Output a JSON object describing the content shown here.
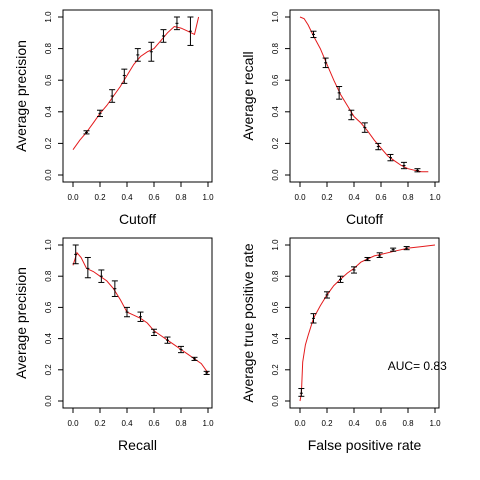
{
  "chart_data": [
    {
      "type": "line",
      "xlabel": "Cutoff",
      "ylabel": "Average precision",
      "xlim": [
        0,
        1
      ],
      "ylim": [
        0,
        1
      ],
      "xticks": [
        "0.0",
        "0.2",
        "0.4",
        "0.6",
        "0.8",
        "1.0"
      ],
      "yticks": [
        "0.0",
        "0.2",
        "0.4",
        "0.6",
        "0.8",
        "1.0"
      ],
      "curve_color": "#e41a1c",
      "curve": {
        "x": [
          0.0,
          0.05,
          0.1,
          0.15,
          0.2,
          0.25,
          0.3,
          0.35,
          0.4,
          0.45,
          0.5,
          0.55,
          0.6,
          0.65,
          0.7,
          0.75,
          0.8,
          0.85,
          0.9,
          0.93
        ],
        "y": [
          0.16,
          0.22,
          0.27,
          0.33,
          0.39,
          0.44,
          0.5,
          0.56,
          0.63,
          0.7,
          0.75,
          0.78,
          0.8,
          0.85,
          0.9,
          0.94,
          0.93,
          0.91,
          0.89,
          1.0
        ]
      },
      "errorbars": {
        "x": [
          0.1,
          0.2,
          0.29,
          0.38,
          0.48,
          0.58,
          0.67,
          0.77,
          0.87
        ],
        "y": [
          0.27,
          0.39,
          0.5,
          0.63,
          0.76,
          0.78,
          0.88,
          0.96,
          0.91
        ],
        "lo": [
          0.26,
          0.37,
          0.46,
          0.58,
          0.72,
          0.72,
          0.84,
          0.92,
          0.82
        ],
        "hi": [
          0.28,
          0.41,
          0.54,
          0.67,
          0.8,
          0.84,
          0.92,
          1.0,
          1.0
        ]
      }
    },
    {
      "type": "line",
      "xlabel": "Cutoff",
      "ylabel": "Average recall",
      "xlim": [
        0,
        1
      ],
      "ylim": [
        0,
        1
      ],
      "xticks": [
        "0.0",
        "0.2",
        "0.4",
        "0.6",
        "0.8",
        "1.0"
      ],
      "yticks": [
        "0.0",
        "0.2",
        "0.4",
        "0.6",
        "0.8",
        "1.0"
      ],
      "curve_color": "#e41a1c",
      "curve": {
        "x": [
          0.0,
          0.03,
          0.06,
          0.1,
          0.15,
          0.2,
          0.25,
          0.3,
          0.35,
          0.4,
          0.45,
          0.5,
          0.55,
          0.6,
          0.65,
          0.7,
          0.75,
          0.8,
          0.85,
          0.9,
          0.95
        ],
        "y": [
          1.0,
          0.99,
          0.95,
          0.88,
          0.8,
          0.7,
          0.6,
          0.51,
          0.44,
          0.37,
          0.33,
          0.28,
          0.22,
          0.17,
          0.12,
          0.09,
          0.06,
          0.04,
          0.03,
          0.02,
          0.02
        ]
      },
      "errorbars": {
        "x": [
          0.1,
          0.19,
          0.29,
          0.38,
          0.48,
          0.58,
          0.67,
          0.77,
          0.87
        ],
        "y": [
          0.89,
          0.71,
          0.52,
          0.38,
          0.3,
          0.18,
          0.11,
          0.06,
          0.03
        ],
        "lo": [
          0.87,
          0.68,
          0.48,
          0.35,
          0.27,
          0.16,
          0.09,
          0.04,
          0.02
        ],
        "hi": [
          0.91,
          0.74,
          0.56,
          0.41,
          0.33,
          0.2,
          0.13,
          0.08,
          0.04
        ]
      }
    },
    {
      "type": "line",
      "xlabel": "Recall",
      "ylabel": "Average precision",
      "xlim": [
        0,
        1
      ],
      "ylim": [
        0,
        1
      ],
      "xticks": [
        "0.0",
        "0.2",
        "0.4",
        "0.6",
        "0.8",
        "1.0"
      ],
      "yticks": [
        "0.0",
        "0.2",
        "0.4",
        "0.6",
        "0.8",
        "1.0"
      ],
      "curve_color": "#e41a1c",
      "curve": {
        "x": [
          0.0,
          0.03,
          0.06,
          0.1,
          0.15,
          0.2,
          0.25,
          0.3,
          0.35,
          0.4,
          0.45,
          0.5,
          0.55,
          0.6,
          0.65,
          0.7,
          0.75,
          0.8,
          0.85,
          0.9,
          0.95,
          1.0
        ],
        "y": [
          0.87,
          0.95,
          0.92,
          0.85,
          0.83,
          0.8,
          0.77,
          0.72,
          0.65,
          0.57,
          0.55,
          0.53,
          0.5,
          0.45,
          0.42,
          0.39,
          0.36,
          0.33,
          0.3,
          0.27,
          0.24,
          0.18
        ]
      },
      "errorbars": {
        "x": [
          0.02,
          0.11,
          0.21,
          0.31,
          0.4,
          0.5,
          0.6,
          0.7,
          0.8,
          0.9,
          0.99
        ],
        "y": [
          0.94,
          0.85,
          0.8,
          0.72,
          0.57,
          0.54,
          0.44,
          0.39,
          0.33,
          0.27,
          0.18
        ],
        "lo": [
          0.88,
          0.79,
          0.76,
          0.67,
          0.54,
          0.51,
          0.42,
          0.37,
          0.31,
          0.26,
          0.17
        ],
        "hi": [
          1.0,
          0.92,
          0.84,
          0.77,
          0.6,
          0.57,
          0.46,
          0.41,
          0.35,
          0.28,
          0.19
        ]
      }
    },
    {
      "type": "line",
      "xlabel": "False positive rate",
      "ylabel": "Average true positive rate",
      "xlim": [
        0,
        1
      ],
      "ylim": [
        0,
        1
      ],
      "xticks": [
        "0.0",
        "0.2",
        "0.4",
        "0.6",
        "0.8",
        "1.0"
      ],
      "yticks": [
        "0.0",
        "0.2",
        "0.4",
        "0.6",
        "0.8",
        "1.0"
      ],
      "annotation": "AUC= 0.83",
      "curve_color": "#e41a1c",
      "curve": {
        "x": [
          0.0,
          0.01,
          0.02,
          0.04,
          0.06,
          0.1,
          0.15,
          0.2,
          0.25,
          0.3,
          0.35,
          0.4,
          0.45,
          0.5,
          0.55,
          0.6,
          0.7,
          0.8,
          0.9,
          1.0
        ],
        "y": [
          0.0,
          0.05,
          0.25,
          0.36,
          0.42,
          0.53,
          0.61,
          0.68,
          0.74,
          0.78,
          0.82,
          0.85,
          0.89,
          0.91,
          0.93,
          0.94,
          0.96,
          0.98,
          0.99,
          1.0
        ]
      },
      "errorbars": {
        "x": [
          0.01,
          0.1,
          0.2,
          0.3,
          0.4,
          0.5,
          0.59,
          0.69,
          0.79
        ],
        "y": [
          0.05,
          0.53,
          0.68,
          0.78,
          0.84,
          0.91,
          0.93,
          0.97,
          0.98
        ],
        "lo": [
          0.03,
          0.5,
          0.66,
          0.76,
          0.82,
          0.9,
          0.92,
          0.96,
          0.97
        ],
        "hi": [
          0.08,
          0.56,
          0.7,
          0.8,
          0.86,
          0.92,
          0.95,
          0.98,
          0.99
        ]
      }
    }
  ]
}
